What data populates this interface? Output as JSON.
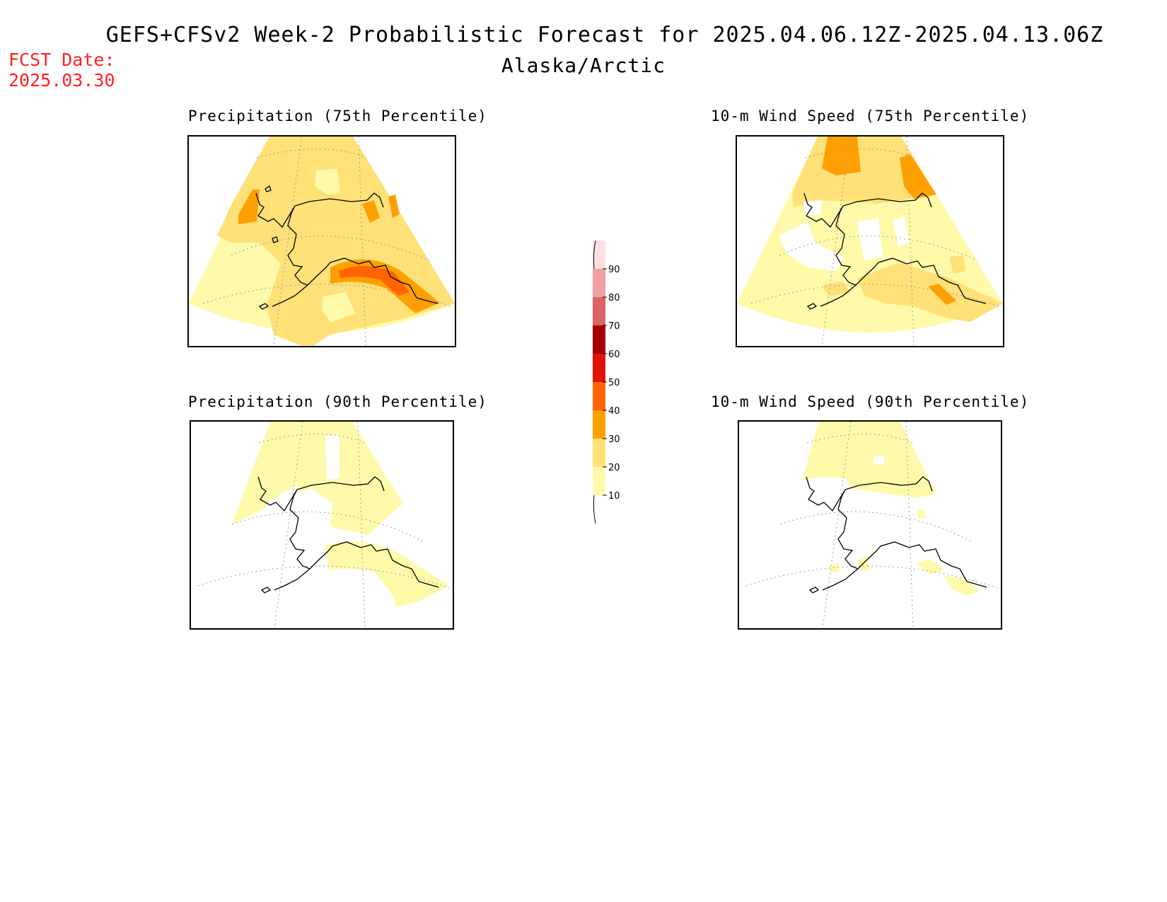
{
  "header": {
    "title": "GEFS+CFSv2 Week-2 Probabilistic Forecast for 2025.04.06.12Z-2025.04.13.06Z",
    "subtitle": "Alaska/Arctic",
    "fcst_label": "FCST Date:",
    "fcst_date": "2025.03.30"
  },
  "panels": [
    {
      "title": "Precipitation (75th Percentile)",
      "max_category": "40-50"
    },
    {
      "title": "10-m Wind Speed (75th Percentile)",
      "max_category": "30-40"
    },
    {
      "title": "Precipitation (90th Percentile)",
      "max_category": "10-20"
    },
    {
      "title": "10-m Wind Speed (90th Percentile)",
      "max_category": "10-20"
    }
  ],
  "colorbar": {
    "tick_labels": [
      "10",
      "20",
      "30",
      "40",
      "50",
      "60",
      "70",
      "80",
      "90"
    ],
    "colors": [
      "#fffaaa",
      "#ffe178",
      "#ffa000",
      "#ff6400",
      "#e11400",
      "#a50000",
      "#dc6464",
      "#f0a0a0",
      "#fee0e0"
    ]
  },
  "colors": {
    "c10": "#fffaaa",
    "c20": "#ffe178",
    "c30": "#ffa000",
    "c40": "#ff6400",
    "fcst_red": "#ff2020"
  }
}
